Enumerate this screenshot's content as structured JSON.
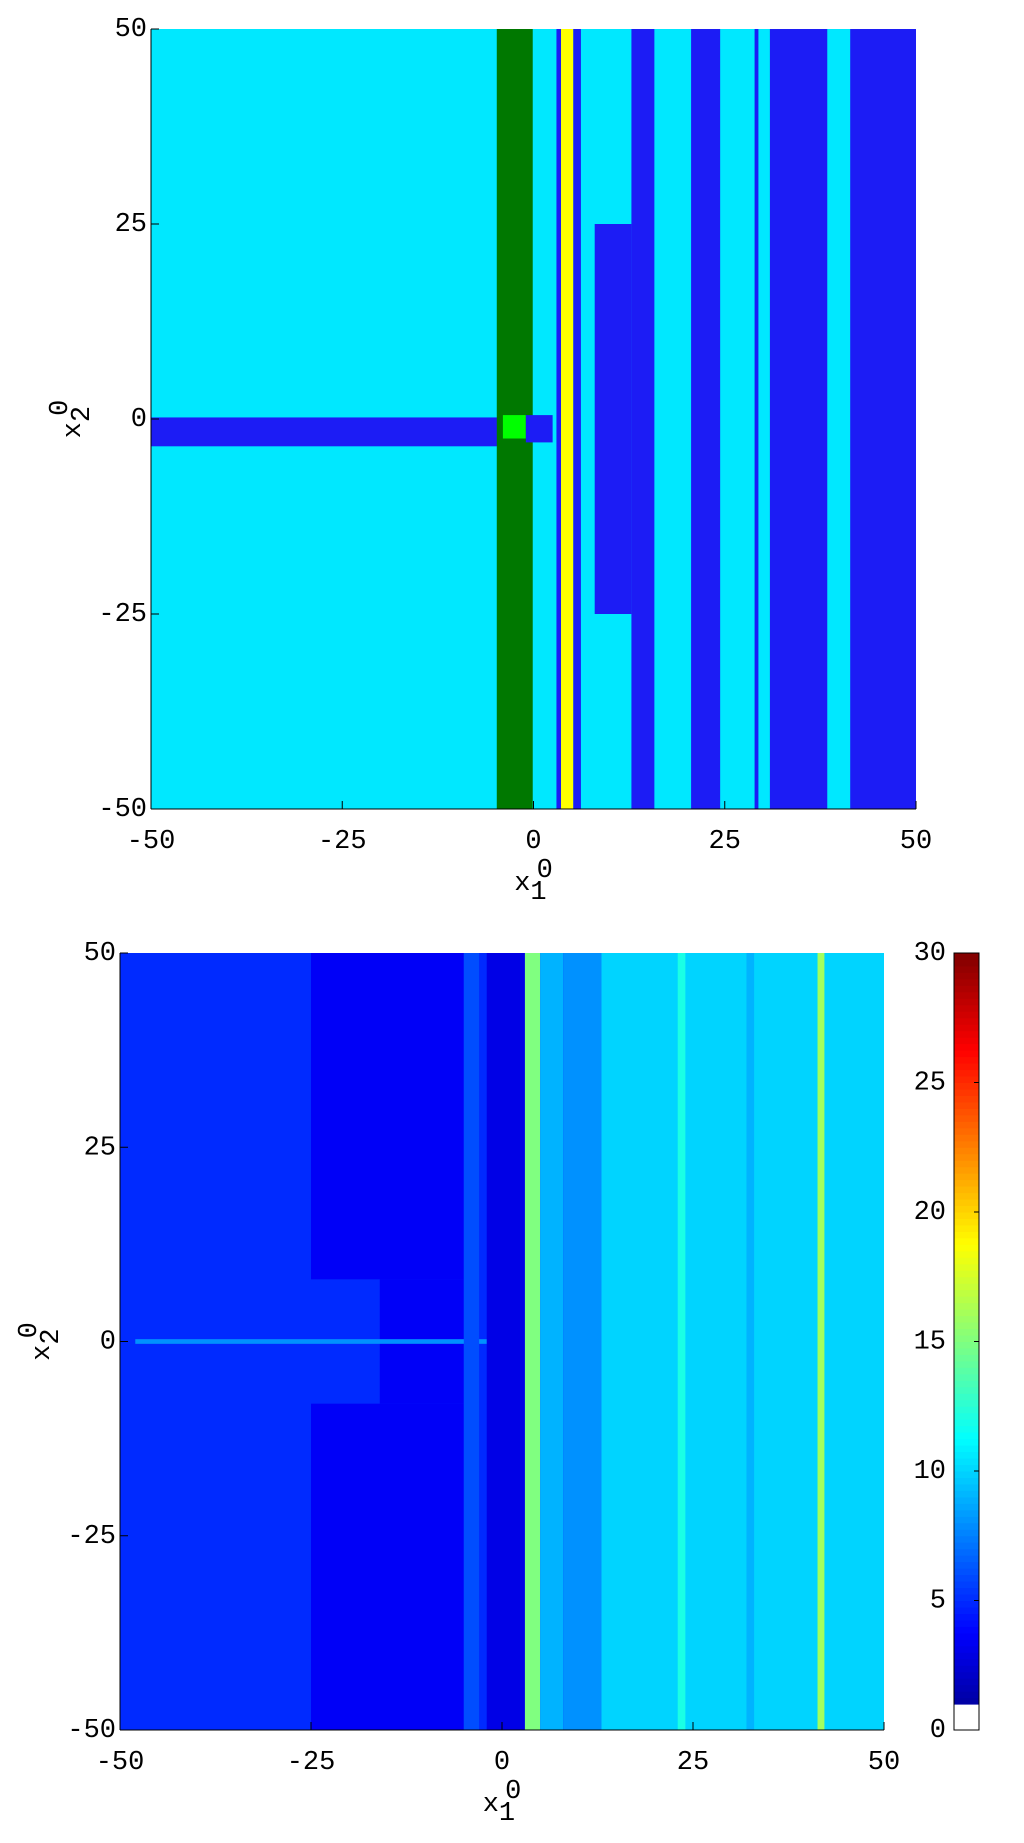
{
  "chart_data": [
    {
      "type": "class-map",
      "xlabel": {
        "base": "x",
        "sup": "0",
        "sub": "1"
      },
      "ylabel": {
        "base": "x",
        "sup": "0",
        "sub": "2"
      },
      "xlim": [
        -50,
        50
      ],
      "ylim": [
        -50,
        50
      ],
      "xticks": [
        -50,
        -25,
        0,
        25,
        50
      ],
      "yticks": [
        -50,
        -25,
        0,
        25,
        50
      ],
      "regions": [
        {
          "x": [
            -50,
            50
          ],
          "y": [
            -50,
            50
          ],
          "color": "#00e8ff"
        },
        {
          "x": [
            -50,
            -4
          ],
          "y": [
            -3.5,
            0.2
          ],
          "color": "#1c1cf5"
        },
        {
          "x": [
            -4.8,
            -0.1
          ],
          "y": [
            -50,
            50
          ],
          "color": "#007800"
        },
        {
          "x": [
            -4,
            -1
          ],
          "y": [
            -2.5,
            0.5
          ],
          "color": "#00ff00"
        },
        {
          "x": [
            -1,
            2.5
          ],
          "y": [
            -3,
            0.5
          ],
          "color": "#1c1cf5"
        },
        {
          "x": [
            3,
            3.6
          ],
          "y": [
            -50,
            50
          ],
          "color": "#1c1cf5"
        },
        {
          "x": [
            3.6,
            5.2
          ],
          "y": [
            -50,
            50
          ],
          "color": "#ffff00"
        },
        {
          "x": [
            5.2,
            6.2
          ],
          "y": [
            -50,
            50
          ],
          "color": "#1c1cf5"
        },
        {
          "x": [
            8,
            12.8
          ],
          "y": [
            -25,
            25
          ],
          "color": "#1c1cf5"
        },
        {
          "x": [
            12.8,
            15.8
          ],
          "y": [
            -50,
            50
          ],
          "color": "#1c1cf5"
        },
        {
          "x": [
            20.6,
            24.4
          ],
          "y": [
            -50,
            50
          ],
          "color": "#1c1cf5"
        },
        {
          "x": [
            28.9,
            29.4
          ],
          "y": [
            -50,
            50
          ],
          "color": "#1c1cf5"
        },
        {
          "x": [
            30.9,
            38.4
          ],
          "y": [
            -50,
            50
          ],
          "color": "#1c1cf5"
        },
        {
          "x": [
            41.4,
            50
          ],
          "y": [
            -50,
            50
          ],
          "color": "#1c1cf5"
        }
      ]
    },
    {
      "type": "heatmap",
      "xlabel": {
        "base": "x",
        "sup": "0",
        "sub": "1"
      },
      "ylabel": {
        "base": "x",
        "sup": "0",
        "sub": "2"
      },
      "xlim": [
        -50,
        50
      ],
      "ylim": [
        -50,
        50
      ],
      "xticks": [
        -50,
        -25,
        0,
        25,
        50
      ],
      "yticks": [
        -50,
        -25,
        0,
        25,
        50
      ],
      "clim": [
        0,
        30
      ],
      "cticks": [
        0,
        5,
        10,
        15,
        20,
        25,
        30
      ],
      "white_below": 1,
      "cells": [
        {
          "x": [
            -50,
            50
          ],
          "y": [
            -50,
            50
          ],
          "value": 5
        },
        {
          "x": [
            -25,
            -5
          ],
          "y": [
            8,
            50
          ],
          "value": 3.5
        },
        {
          "x": [
            -25,
            -5
          ],
          "y": [
            -50,
            -8
          ],
          "value": 3.5
        },
        {
          "x": [
            -16,
            -5
          ],
          "y": [
            -8,
            8
          ],
          "value": 3.5
        },
        {
          "x": [
            -48,
            0
          ],
          "y": [
            -0.3,
            0.3
          ],
          "value": 8
        },
        {
          "x": [
            -5,
            -3
          ],
          "y": [
            -50,
            50
          ],
          "value": 6
        },
        {
          "x": [
            -2,
            3
          ],
          "y": [
            -50,
            50
          ],
          "value": 3
        },
        {
          "x": [
            3,
            5
          ],
          "y": [
            -50,
            50
          ],
          "value": 15
        },
        {
          "x": [
            5,
            8
          ],
          "y": [
            -50,
            50
          ],
          "value": 9
        },
        {
          "x": [
            8,
            13
          ],
          "y": [
            -50,
            50
          ],
          "value": 8
        },
        {
          "x": [
            13,
            50
          ],
          "y": [
            -50,
            50
          ],
          "value": 10
        },
        {
          "x": [
            23,
            24
          ],
          "y": [
            -50,
            50
          ],
          "value": 12
        },
        {
          "x": [
            32,
            33
          ],
          "y": [
            -50,
            50
          ],
          "value": 9
        },
        {
          "x": [
            41.3,
            42.2
          ],
          "y": [
            -50,
            50
          ],
          "value": 16
        }
      ]
    }
  ]
}
